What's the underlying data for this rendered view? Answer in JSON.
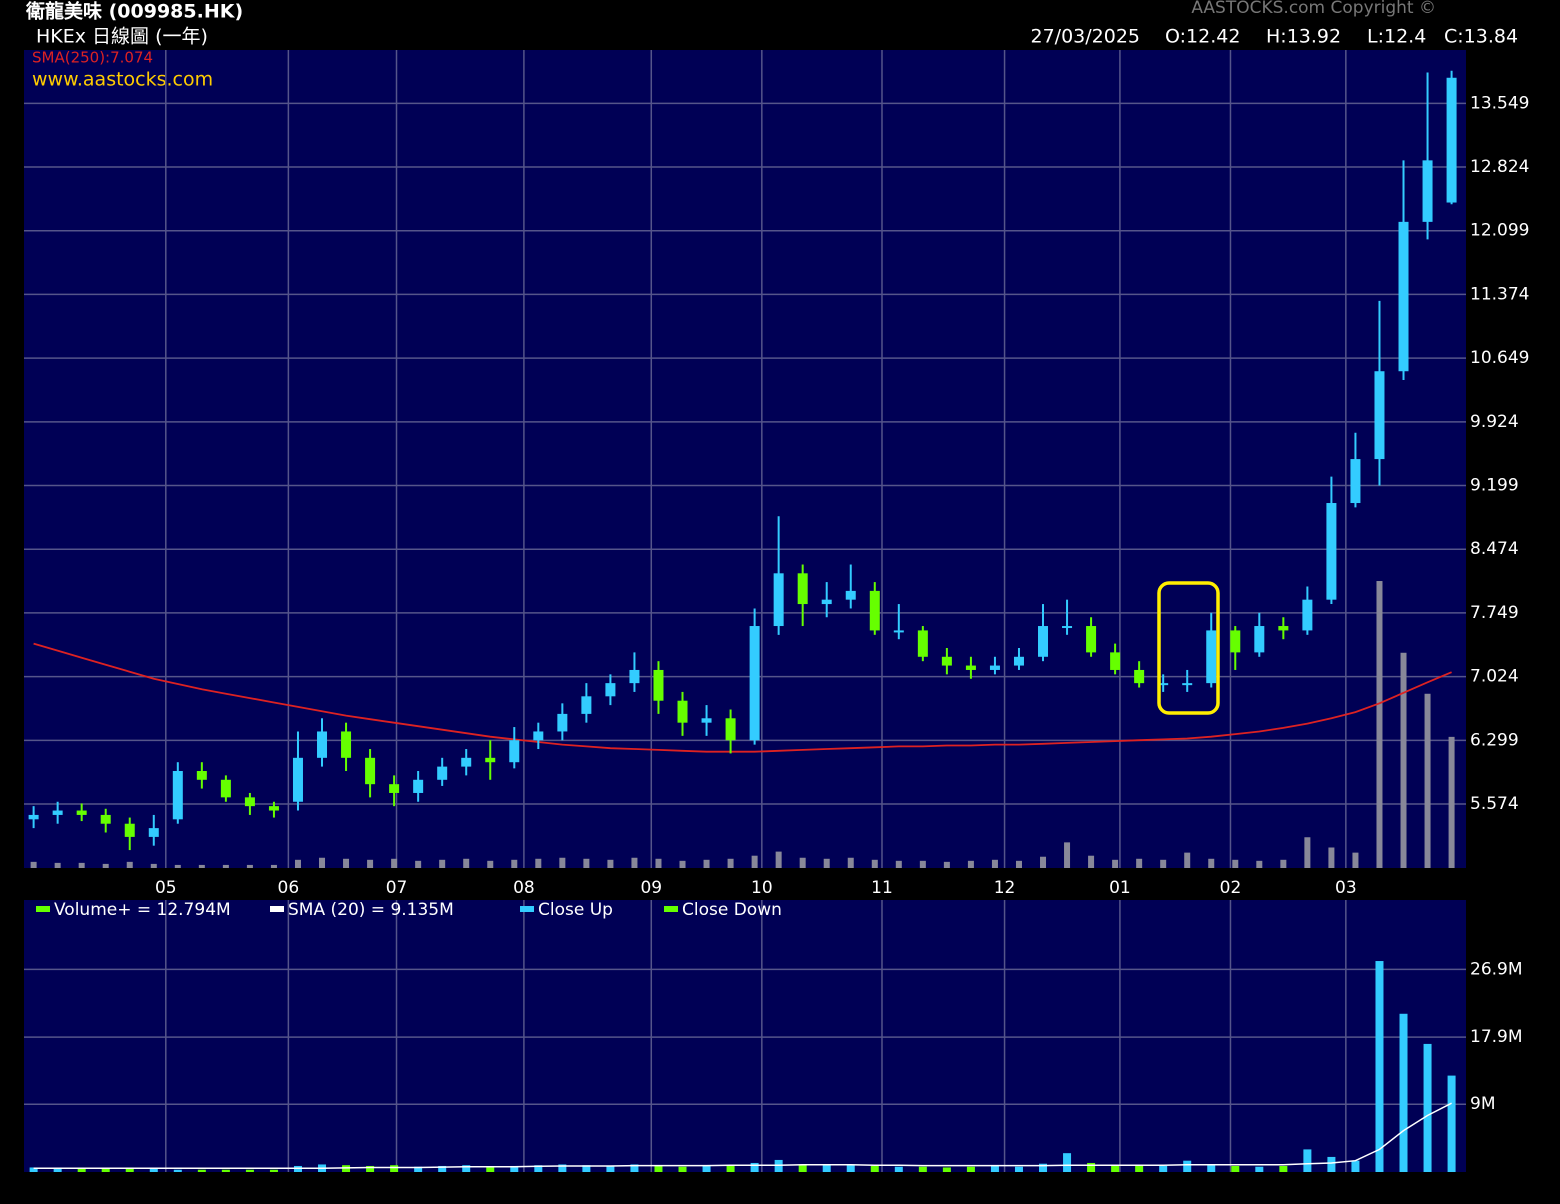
{
  "chart_data": {
    "type": "candlestick",
    "title": "衛龍美味 (009985.HK)",
    "subtitle": "HKEx 日線圖 (一年)",
    "copyright": "AASTOCKS.com Copyright ©",
    "website": "www.aastocks.com",
    "date": "27/03/2025",
    "quote": [
      "O:12.42",
      "H:13.92",
      "L:12.4",
      "C:13.84"
    ],
    "sma_label": "SMA(250):7.074",
    "up_color": "#33ccff",
    "down_color": "#66ff00",
    "xlim": [
      -0.4,
      59.6
    ],
    "xticks": [
      {
        "value": 5.5,
        "label": "05"
      },
      {
        "value": 10.6,
        "label": "06"
      },
      {
        "value": 15.1,
        "label": "07"
      },
      {
        "value": 20.4,
        "label": "08"
      },
      {
        "value": 25.7,
        "label": "09"
      },
      {
        "value": 30.3,
        "label": "10"
      },
      {
        "value": 35.3,
        "label": "11"
      },
      {
        "value": 40.4,
        "label": "12"
      },
      {
        "value": 45.2,
        "label": "01"
      },
      {
        "value": 49.8,
        "label": "02"
      },
      {
        "value": 54.6,
        "label": "03"
      }
    ],
    "ylim": [
      4.846,
      14.156
    ],
    "yticks": [
      5.574,
      6.299,
      7.024,
      7.749,
      8.474,
      9.199,
      9.924,
      10.649,
      11.374,
      12.099,
      12.824,
      13.549
    ],
    "grid": true,
    "open": [
      5.4,
      5.45,
      5.5,
      5.45,
      5.35,
      5.2,
      5.4,
      5.95,
      5.85,
      5.65,
      5.55,
      5.6,
      6.1,
      6.4,
      6.1,
      5.8,
      5.7,
      5.85,
      6.0,
      6.1,
      6.05,
      6.3,
      6.4,
      6.6,
      6.8,
      6.95,
      7.1,
      6.75,
      6.5,
      6.55,
      6.3,
      7.6,
      8.2,
      7.85,
      7.9,
      8.0,
      7.55,
      7.55,
      7.25,
      7.15,
      7.1,
      7.15,
      7.25,
      7.6,
      7.6,
      7.3,
      7.1,
      6.95,
      6.95,
      6.95,
      7.55,
      7.3,
      7.6,
      7.55,
      7.9,
      9.0,
      9.5,
      10.5,
      12.2,
      12.42
    ],
    "high": [
      5.55,
      5.6,
      5.58,
      5.52,
      5.42,
      5.45,
      6.05,
      6.05,
      5.9,
      5.7,
      5.6,
      6.4,
      6.55,
      6.5,
      6.2,
      5.9,
      5.95,
      6.1,
      6.2,
      6.3,
      6.45,
      6.5,
      6.72,
      6.95,
      7.05,
      7.3,
      7.2,
      6.85,
      6.7,
      6.65,
      7.8,
      8.85,
      8.3,
      8.1,
      8.3,
      8.1,
      7.85,
      7.6,
      7.35,
      7.25,
      7.25,
      7.35,
      7.85,
      7.9,
      7.7,
      7.4,
      7.2,
      7.05,
      7.1,
      7.75,
      7.6,
      7.75,
      7.7,
      8.05,
      9.3,
      9.8,
      11.3,
      12.9,
      13.9,
      13.92
    ],
    "low": [
      5.3,
      5.35,
      5.38,
      5.25,
      5.05,
      5.1,
      5.35,
      5.75,
      5.6,
      5.45,
      5.42,
      5.5,
      6.0,
      5.95,
      5.65,
      5.55,
      5.6,
      5.78,
      5.9,
      5.85,
      5.98,
      6.2,
      6.3,
      6.5,
      6.7,
      6.85,
      6.6,
      6.35,
      6.35,
      6.15,
      6.25,
      7.5,
      7.6,
      7.7,
      7.8,
      7.5,
      7.45,
      7.2,
      7.05,
      7.0,
      7.05,
      7.1,
      7.2,
      7.5,
      7.25,
      7.05,
      6.9,
      6.85,
      6.85,
      6.9,
      7.1,
      7.25,
      7.45,
      7.5,
      7.85,
      8.95,
      9.2,
      10.4,
      12.0,
      12.4
    ],
    "close": [
      5.45,
      5.5,
      5.45,
      5.35,
      5.2,
      5.3,
      5.95,
      5.85,
      5.65,
      5.55,
      5.5,
      6.1,
      6.4,
      6.1,
      5.8,
      5.7,
      5.85,
      6.0,
      6.1,
      6.05,
      6.3,
      6.4,
      6.6,
      6.8,
      6.95,
      7.1,
      6.75,
      6.5,
      6.55,
      6.3,
      7.6,
      8.2,
      7.85,
      7.9,
      8.0,
      7.55,
      7.55,
      7.25,
      7.15,
      7.1,
      7.15,
      7.25,
      7.6,
      7.6,
      7.3,
      7.1,
      6.95,
      6.95,
      6.95,
      7.55,
      7.3,
      7.6,
      7.55,
      7.9,
      9.0,
      9.5,
      10.5,
      12.2,
      12.9,
      13.84
    ],
    "sma250": {
      "color": "#dd2222",
      "values": [
        7.4,
        7.32,
        7.24,
        7.16,
        7.08,
        7.0,
        6.94,
        6.88,
        6.83,
        6.78,
        6.73,
        6.68,
        6.63,
        6.58,
        6.54,
        6.5,
        6.46,
        6.42,
        6.38,
        6.34,
        6.31,
        6.28,
        6.25,
        6.23,
        6.21,
        6.2,
        6.19,
        6.18,
        6.17,
        6.17,
        6.17,
        6.18,
        6.19,
        6.2,
        6.21,
        6.22,
        6.23,
        6.23,
        6.24,
        6.24,
        6.25,
        6.25,
        6.26,
        6.27,
        6.28,
        6.29,
        6.3,
        6.31,
        6.32,
        6.34,
        6.37,
        6.4,
        6.44,
        6.49,
        6.55,
        6.62,
        6.72,
        6.84,
        6.96,
        7.074
      ]
    },
    "volume": {
      "ylim": [
        0,
        36.1
      ],
      "yticks": [
        {
          "value": 9,
          "label": "9M"
        },
        {
          "value": 17.9,
          "label": "17.9M"
        },
        {
          "value": 26.9,
          "label": "26.9M"
        }
      ],
      "legend": [
        "Volume+ = 12.794M",
        "SMA (20) = 9.135M",
        "Close Up",
        "Close Down"
      ],
      "sma_color": "#ffffff",
      "values": [
        0.6,
        0.5,
        0.5,
        0.4,
        0.6,
        0.4,
        0.3,
        0.3,
        0.3,
        0.3,
        0.3,
        0.8,
        1.0,
        0.9,
        0.8,
        0.9,
        0.7,
        0.8,
        0.9,
        0.7,
        0.8,
        0.9,
        1.0,
        0.9,
        0.8,
        1.0,
        0.9,
        0.7,
        0.8,
        0.9,
        1.2,
        1.6,
        1.0,
        0.9,
        1.0,
        0.8,
        0.7,
        0.7,
        0.6,
        0.7,
        0.8,
        0.7,
        1.1,
        2.5,
        1.2,
        0.8,
        0.9,
        0.8,
        1.5,
        0.9,
        0.8,
        0.7,
        0.8,
        3.0,
        2.0,
        1.5,
        28.0,
        21.0,
        17.0,
        12.794
      ],
      "sma20": [
        0.5,
        0.5,
        0.5,
        0.5,
        0.5,
        0.5,
        0.5,
        0.5,
        0.5,
        0.5,
        0.5,
        0.5,
        0.5,
        0.55,
        0.6,
        0.6,
        0.6,
        0.65,
        0.7,
        0.7,
        0.7,
        0.75,
        0.8,
        0.8,
        0.8,
        0.85,
        0.85,
        0.85,
        0.85,
        0.9,
        0.9,
        0.9,
        0.95,
        0.95,
        0.95,
        0.9,
        0.9,
        0.85,
        0.85,
        0.85,
        0.85,
        0.85,
        0.85,
        0.9,
        0.9,
        0.9,
        0.9,
        0.9,
        0.95,
        0.95,
        0.95,
        0.95,
        0.95,
        1.1,
        1.2,
        1.5,
        3.0,
        5.5,
        7.5,
        9.135
      ]
    }
  }
}
